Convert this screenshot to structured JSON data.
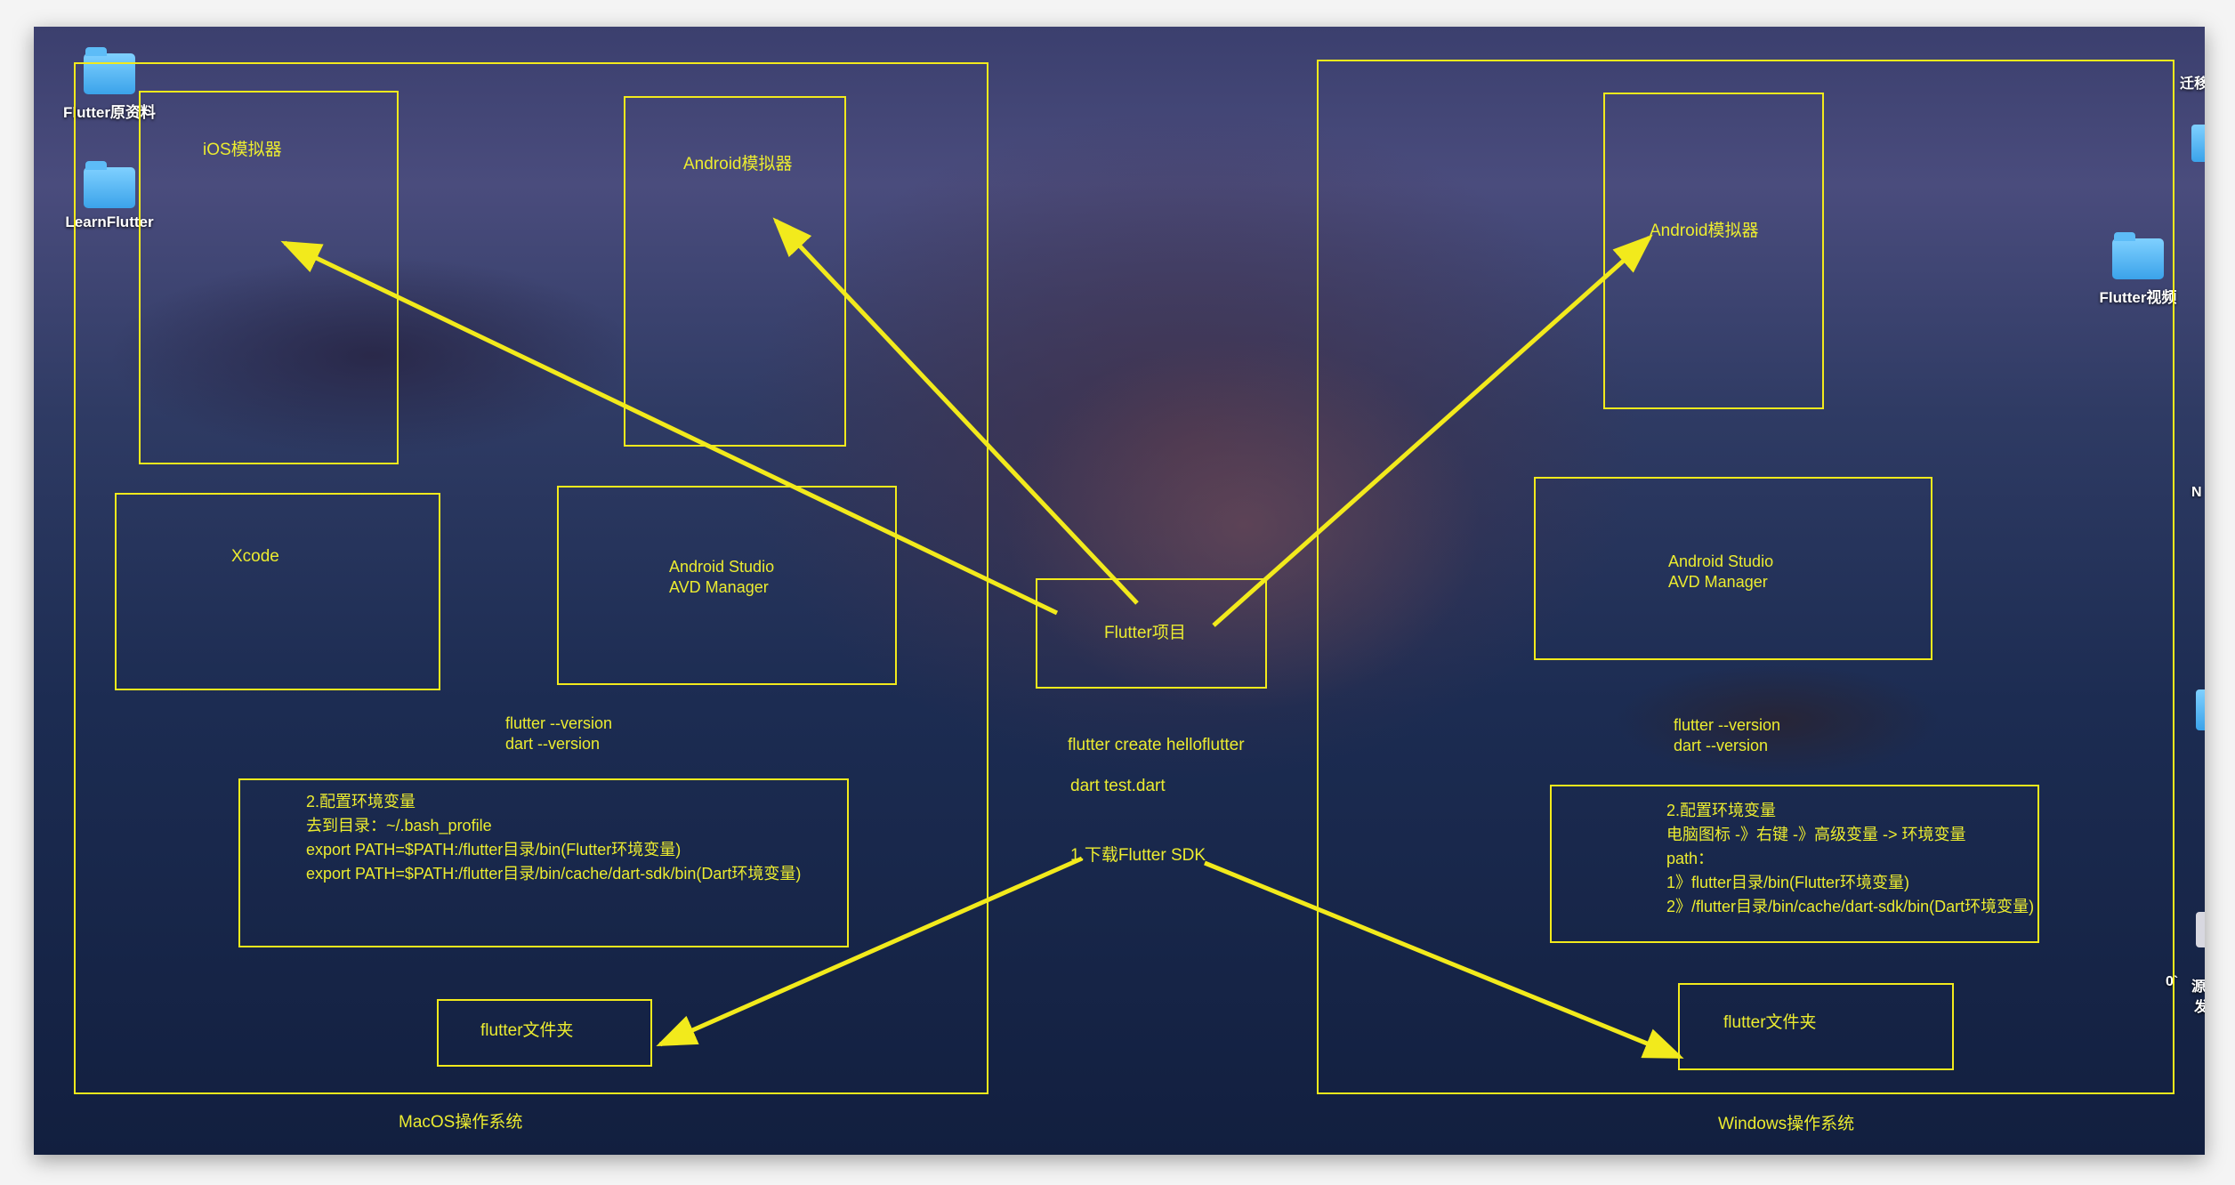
{
  "desktop": {
    "icons": [
      {
        "label": "Flutter原资料"
      },
      {
        "label": "LearnFlutter"
      },
      {
        "label": "Flutter视频"
      }
    ],
    "edge_fragments": [
      "迁移",
      "N",
      "0`",
      "源",
      "发"
    ]
  },
  "diagram": {
    "line_color": "#f2ea1c",
    "text_color": "#ecec30",
    "macos": {
      "title": "MacOS操作系统",
      "ios_simulator": "iOS模拟器",
      "android_emulator": "Android模拟器",
      "xcode": "Xcode",
      "android_studio": [
        "Android  Studio",
        "AVD Manager"
      ],
      "version_cmds": [
        "flutter --version",
        "dart --version"
      ],
      "env_config": [
        "2.配置环境变量",
        "去到目录：~/.bash_profile",
        "export PATH=$PATH:/flutter目录/bin(Flutter环境变量)",
        "export PATH=$PATH:/flutter目录/bin/cache/dart-sdk/bin(Dart环境变量)"
      ],
      "flutter_folder": "flutter文件夹"
    },
    "center": {
      "flutter_project": "Flutter项目",
      "create_cmd": "flutter create helloflutter",
      "dart_cmd": "dart test.dart",
      "download_sdk": "1.下载Flutter SDK"
    },
    "windows": {
      "title": "Windows操作系统",
      "android_emulator": "Android模拟器",
      "android_studio": [
        "Android  Studio",
        "AVD Manager"
      ],
      "version_cmds": [
        "flutter --version",
        "dart --version"
      ],
      "env_config": [
        "2.配置环境变量",
        "电脑图标 -》右键 -》高级变量 -> 环境变量",
        "path：",
        "1》flutter目录/bin(Flutter环境变量)",
        "2》/flutter目录/bin/cache/dart-sdk/bin(Dart环境变量)"
      ],
      "flutter_folder": "flutter文件夹"
    },
    "arrows": [
      {
        "from": "Flutter项目",
        "to": "iOS模拟器"
      },
      {
        "from": "Flutter项目",
        "to": "Android模拟器 (MacOS)"
      },
      {
        "from": "Flutter项目",
        "to": "Android模拟器 (Windows)"
      },
      {
        "from": "1.下载Flutter SDK",
        "to": "flutter文件夹 (MacOS)"
      },
      {
        "from": "1.下载Flutter SDK",
        "to": "flutter文件夹 (Windows)"
      }
    ]
  }
}
